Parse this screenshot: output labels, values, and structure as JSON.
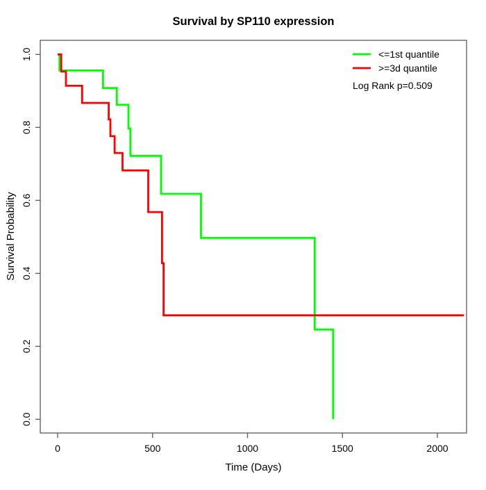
{
  "title": "Survival by SP110 expression",
  "x_axis": {
    "label": "Time (Days)",
    "tick_labels": [
      "0",
      "500",
      "1000",
      "1500",
      "2000"
    ]
  },
  "y_axis": {
    "label": "Survival Probability",
    "tick_labels": [
      "0.0",
      "0.2",
      "0.4",
      "0.6",
      "0.8",
      "1.0"
    ]
  },
  "legend": {
    "items": [
      {
        "label": "<=1st quantile",
        "color": "#00ff00"
      },
      {
        "label": ">=3d quantile",
        "color": "#ff0000"
      }
    ],
    "note": "Log Rank p=0.509",
    "position": "top-right",
    "boxed": false
  },
  "chart_data": {
    "type": "line",
    "subtype": "kaplan-meier-step",
    "title": "Survival by SP110 expression",
    "xlabel": "Time (Days)",
    "ylabel": "Survival Probability",
    "xlim": [
      0,
      2140
    ],
    "ylim": [
      0.0,
      1.0
    ],
    "x_ticks": [
      0,
      500,
      1000,
      1500,
      2000
    ],
    "y_ticks": [
      0.0,
      0.2,
      0.4,
      0.6,
      0.8,
      1.0
    ],
    "grid": false,
    "legend_position": "top-right",
    "annotation": "Log Rank p=0.509",
    "series": [
      {
        "name": "<=1st quantile",
        "color": "#00ff00",
        "end_time": 1451,
        "points": [
          [
            0,
            1.0
          ],
          [
            10,
            0.956
          ],
          [
            239,
            0.908
          ],
          [
            312,
            0.862
          ],
          [
            373,
            0.797
          ],
          [
            383,
            0.722
          ],
          [
            545,
            0.618
          ],
          [
            755,
            0.497
          ],
          [
            1354,
            0.246
          ],
          [
            1451,
            0.0
          ]
        ]
      },
      {
        "name": ">=3d quantile",
        "color": "#ff0000",
        "end_time": 2140,
        "points": [
          [
            0,
            1.0
          ],
          [
            19,
            0.953
          ],
          [
            44,
            0.914
          ],
          [
            129,
            0.867
          ],
          [
            269,
            0.822
          ],
          [
            278,
            0.776
          ],
          [
            300,
            0.73
          ],
          [
            342,
            0.682
          ],
          [
            477,
            0.568
          ],
          [
            550,
            0.428
          ],
          [
            558,
            0.285
          ]
        ]
      }
    ]
  }
}
